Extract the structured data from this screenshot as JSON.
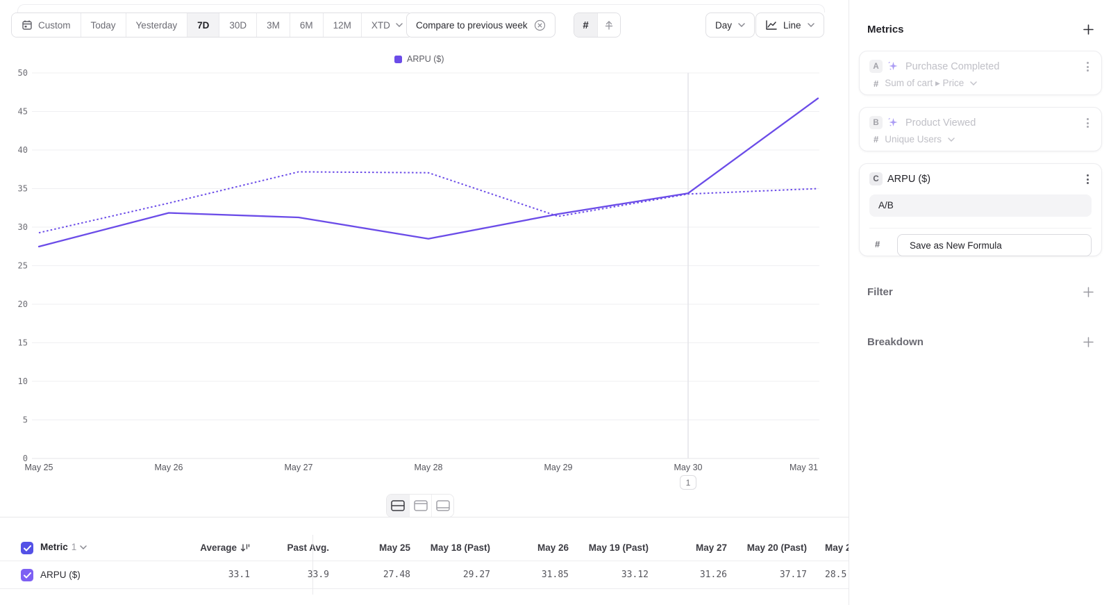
{
  "toolbar": {
    "ranges": [
      "Custom",
      "Today",
      "Yesterday",
      "7D",
      "30D",
      "3M",
      "6M",
      "12M",
      "XTD"
    ],
    "selected_range": "7D",
    "compare_label": "Compare to previous week",
    "values_glyph": "#",
    "granularity_label": "Day",
    "chart_type_label": "Line"
  },
  "legend": {
    "label": "ARPU ($)"
  },
  "chart": {
    "annotation_label": "1"
  },
  "chart_data": {
    "type": "line",
    "title": "",
    "x": [
      "May 25",
      "May 26",
      "May 27",
      "May 28",
      "May 29",
      "May 30",
      "May 31"
    ],
    "series": [
      {
        "name": "ARPU ($)",
        "style": "solid",
        "color": "#6b4ce8",
        "values": [
          27.48,
          31.85,
          31.26,
          28.5,
          31.7,
          34.4,
          46.7
        ]
      },
      {
        "name": "ARPU ($) previous week",
        "style": "dotted",
        "color": "#6b4ce8",
        "values": [
          29.27,
          33.12,
          37.17,
          37.05,
          31.4,
          34.3,
          35.0
        ]
      }
    ],
    "ylim": [
      0,
      50
    ],
    "ytick_step": 5,
    "grid": true,
    "legend_position": "top-center",
    "annotation": {
      "x_index": 5,
      "label": "1"
    }
  },
  "metrics_panel": {
    "title": "Metrics",
    "hash_glyph": "#",
    "cards": [
      {
        "badge": "A",
        "title": "Purchase Completed",
        "measure": "Sum of cart ▸ Price",
        "disabled": true
      },
      {
        "badge": "B",
        "title": "Product Viewed",
        "measure": "Unique Users",
        "disabled": true
      },
      {
        "badge": "C",
        "title": "ARPU ($)",
        "formula": "A/B",
        "save_button": "Save as New Formula"
      }
    ],
    "filter": {
      "title": "Filter"
    },
    "breakdown": {
      "title": "Breakdown"
    }
  },
  "table": {
    "metric_header": "Metric",
    "metric_count": "1",
    "columns": [
      "Average",
      "Past Avg.",
      "May 25",
      "May 18 (Past)",
      "May 26",
      "May 19 (Past)",
      "May 27",
      "May 20 (Past)",
      "May 2"
    ],
    "rows": [
      {
        "label": "ARPU ($)",
        "values": [
          "33.1",
          "33.9",
          "27.48",
          "29.27",
          "31.85",
          "33.12",
          "31.26",
          "37.17",
          "28.5"
        ]
      }
    ]
  }
}
